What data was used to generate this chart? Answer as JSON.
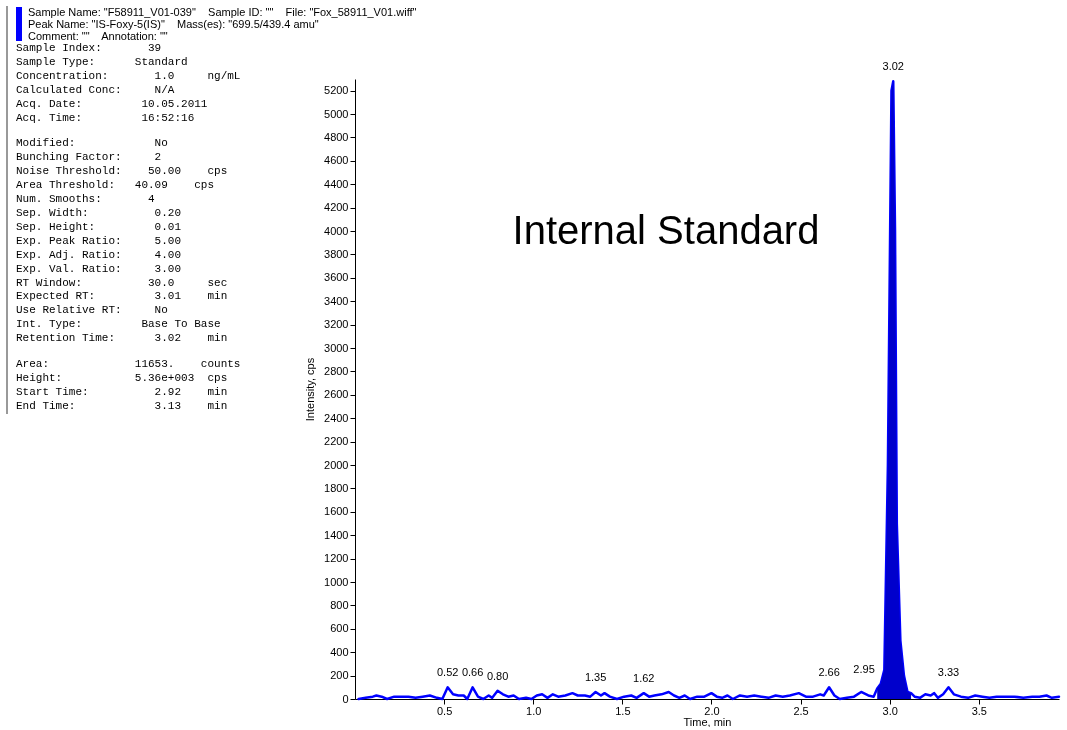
{
  "chart_data": {
    "type": "line",
    "title": "Internal Standard",
    "xlabel": "Time, min",
    "ylabel": "Intensity, cps",
    "xlim": [
      0,
      3.95
    ],
    "ylim": [
      0,
      5300
    ],
    "xticks": [
      {
        "value": 0.5,
        "label": "0.5"
      },
      {
        "value": 1,
        "label": "1.0"
      },
      {
        "value": 1.5,
        "label": "1.5"
      },
      {
        "value": 2,
        "label": "2.0"
      },
      {
        "value": 2.5,
        "label": "2.5"
      },
      {
        "value": 3,
        "label": "3.0"
      },
      {
        "value": 3.5,
        "label": "3.5"
      }
    ],
    "yticks": [
      0,
      200,
      400,
      600,
      800,
      1000,
      1200,
      1400,
      1600,
      1800,
      2000,
      2200,
      2400,
      2600,
      2800,
      3000,
      3200,
      3400,
      3600,
      3800,
      4000,
      4200,
      4400,
      4600,
      4800,
      5000,
      5200
    ],
    "grid": false,
    "series": [
      {
        "color": "#0000ff",
        "x": [
          0.02,
          0.06,
          0.1,
          0.12,
          0.15,
          0.18,
          0.22,
          0.26,
          0.3,
          0.34,
          0.38,
          0.42,
          0.46,
          0.49,
          0.52,
          0.55,
          0.58,
          0.61,
          0.63,
          0.66,
          0.69,
          0.72,
          0.75,
          0.77,
          0.8,
          0.83,
          0.86,
          0.89,
          0.92,
          0.96,
          0.99,
          1.02,
          1.05,
          1.08,
          1.11,
          1.14,
          1.18,
          1.22,
          1.25,
          1.29,
          1.32,
          1.35,
          1.38,
          1.4,
          1.43,
          1.47,
          1.51,
          1.55,
          1.58,
          1.62,
          1.65,
          1.68,
          1.72,
          1.76,
          1.79,
          1.82,
          1.85,
          1.88,
          1.92,
          1.96,
          2.0,
          2.03,
          2.06,
          2.09,
          2.12,
          2.16,
          2.2,
          2.24,
          2.28,
          2.32,
          2.36,
          2.4,
          2.44,
          2.49,
          2.53,
          2.57,
          2.61,
          2.63,
          2.66,
          2.69,
          2.72,
          2.76,
          2.8,
          2.84,
          2.88,
          2.91,
          2.93,
          2.95,
          2.97,
          2.99,
          3.01,
          3.02,
          3.03,
          3.04,
          3.06,
          3.08,
          3.1,
          3.12,
          3.14,
          3.17,
          3.2,
          3.23,
          3.25,
          3.27,
          3.3,
          3.33,
          3.36,
          3.4,
          3.44,
          3.48,
          3.52,
          3.56,
          3.6,
          3.65,
          3.7,
          3.75,
          3.8,
          3.84,
          3.88,
          3.91,
          3.95
        ],
        "values": [
          0,
          10,
          20,
          30,
          20,
          0,
          20,
          20,
          20,
          10,
          20,
          30,
          10,
          0,
          100,
          40,
          30,
          30,
          0,
          100,
          20,
          0,
          30,
          10,
          70,
          40,
          20,
          30,
          0,
          10,
          0,
          30,
          40,
          10,
          40,
          20,
          30,
          50,
          30,
          30,
          20,
          60,
          30,
          50,
          20,
          0,
          20,
          30,
          10,
          50,
          20,
          30,
          40,
          60,
          30,
          10,
          30,
          0,
          20,
          20,
          50,
          20,
          10,
          30,
          0,
          30,
          20,
          30,
          20,
          10,
          30,
          20,
          30,
          50,
          20,
          20,
          40,
          30,
          100,
          30,
          0,
          10,
          20,
          60,
          30,
          20,
          90,
          130,
          250,
          2000,
          5200,
          5280,
          4000,
          1500,
          500,
          200,
          60,
          50,
          20,
          10,
          40,
          30,
          50,
          10,
          40,
          100,
          40,
          20,
          10,
          30,
          20,
          10,
          20,
          20,
          20,
          10,
          20,
          20,
          30,
          10,
          20
        ]
      },
      {
        "type": "area",
        "color": "#0000cc",
        "x": [
          2.93,
          2.95,
          2.97,
          2.99,
          3.01,
          3.02,
          3.03,
          3.04,
          3.06,
          3.08,
          3.1,
          3.12
        ],
        "values": [
          90,
          130,
          250,
          2000,
          5200,
          5280,
          4000,
          1500,
          500,
          200,
          60,
          50
        ]
      }
    ],
    "annotations": [
      {
        "text": "0.52",
        "x": 0.52,
        "y": 100
      },
      {
        "text": "0.66",
        "x": 0.66,
        "y": 100
      },
      {
        "text": "0.80",
        "x": 0.8,
        "y": 70
      },
      {
        "text": "1.35",
        "x": 1.35,
        "y": 60
      },
      {
        "text": "1.62",
        "x": 1.62,
        "y": 50
      },
      {
        "text": "2.66",
        "x": 2.66,
        "y": 100
      },
      {
        "text": "2.95",
        "x": 2.95,
        "y": 130
      },
      {
        "text": "3.02",
        "x": 3.02,
        "y": 5280
      },
      {
        "text": "3.33",
        "x": 3.33,
        "y": 100
      },
      "Sample Name: \"F58911_V01-039\"    Sample ID: \"\"    File: \"Fox_58911_V01.wiff\"",
      "Peak Name: \"IS-Foxy-5(IS)\"    Mass(es): \"699.5/439.4 amu\"",
      "Comment: \"\"    Annotation: \"\"",
      "Sample Index:       39",
      "Sample Type:      Standard",
      "Concentration:       1.0     ng/mL",
      "Calculated Conc:     N/A",
      "Acq. Date:         10.05.2011",
      "Acq. Time:         16:52:16",
      "Modified:            No",
      "Bunching Factor:     2",
      "Noise Threshold:    50.00    cps",
      "Area Threshold:   40.09    cps",
      "Num. Smooths:       4",
      "Sep. Width:          0.20",
      "Sep. Height:         0.01",
      "Exp. Peak Ratio:     5.00",
      "Exp. Adj. Ratio:     4.00",
      "Exp. Val. Ratio:     3.00",
      "RT Window:          30.0     sec",
      "Expected RT:         3.01    min",
      "Use Relative RT:     No",
      "Int. Type:         Base To Base",
      "Retention Time:      3.02    min",
      "Area:             11653.    counts",
      "Height:           5.36e+003  cps",
      "Start Time:          2.92    min",
      "End Time:            3.13    min"
    ]
  }
}
